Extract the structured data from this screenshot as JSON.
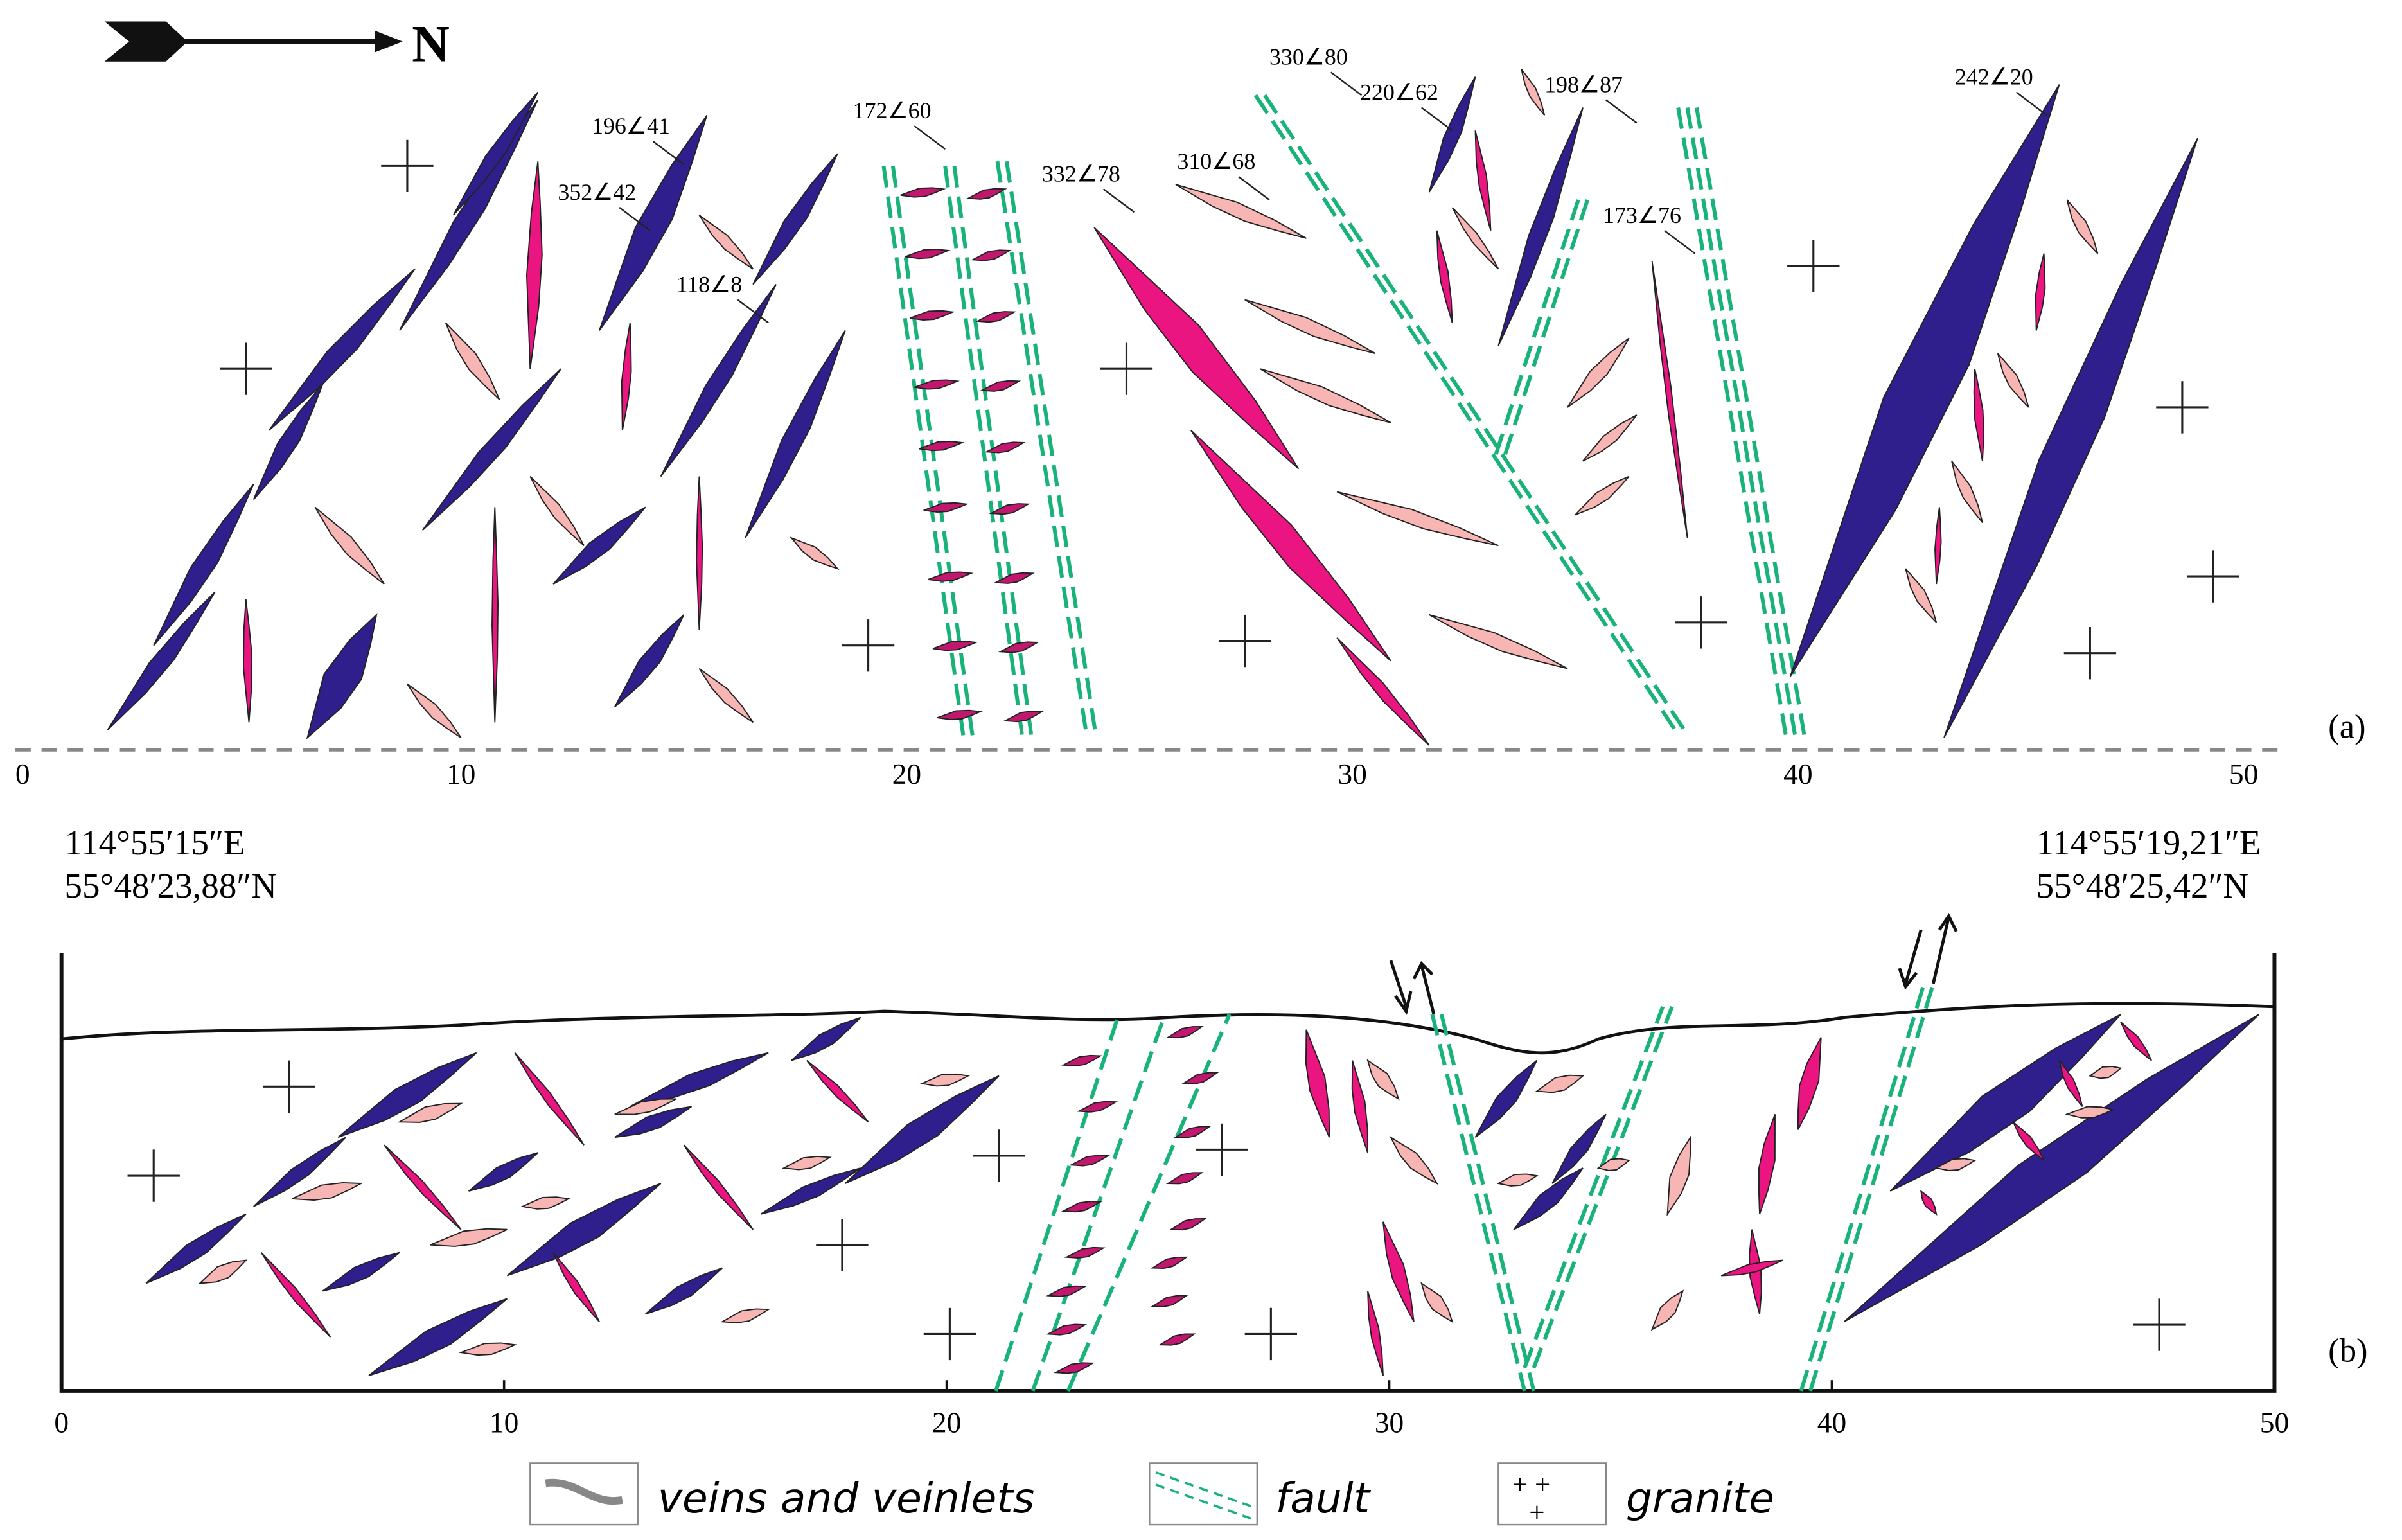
{
  "north": "N",
  "panel_a": {
    "label": "(a)",
    "axis_ticks": [
      0,
      10,
      20,
      30,
      40,
      50
    ],
    "orientations": [
      "196∠41",
      "352∠42",
      "118∠8",
      "172∠60",
      "332∠78",
      "310∠68",
      "330∠80",
      "220∠62",
      "198∠87",
      "173∠76",
      "242∠20"
    ]
  },
  "panel_b": {
    "label": "(b)",
    "axis_ticks": [
      0,
      10,
      20,
      30,
      40,
      50
    ]
  },
  "coordinates": {
    "start": {
      "lon": "114°55′15″E",
      "lat": "55°48′23,88″N"
    },
    "end": {
      "lon": "114°55′19,21″E",
      "lat": "55°48′25,42″N"
    }
  },
  "legend": [
    "veins and veinlets",
    "fault",
    "granite"
  ]
}
